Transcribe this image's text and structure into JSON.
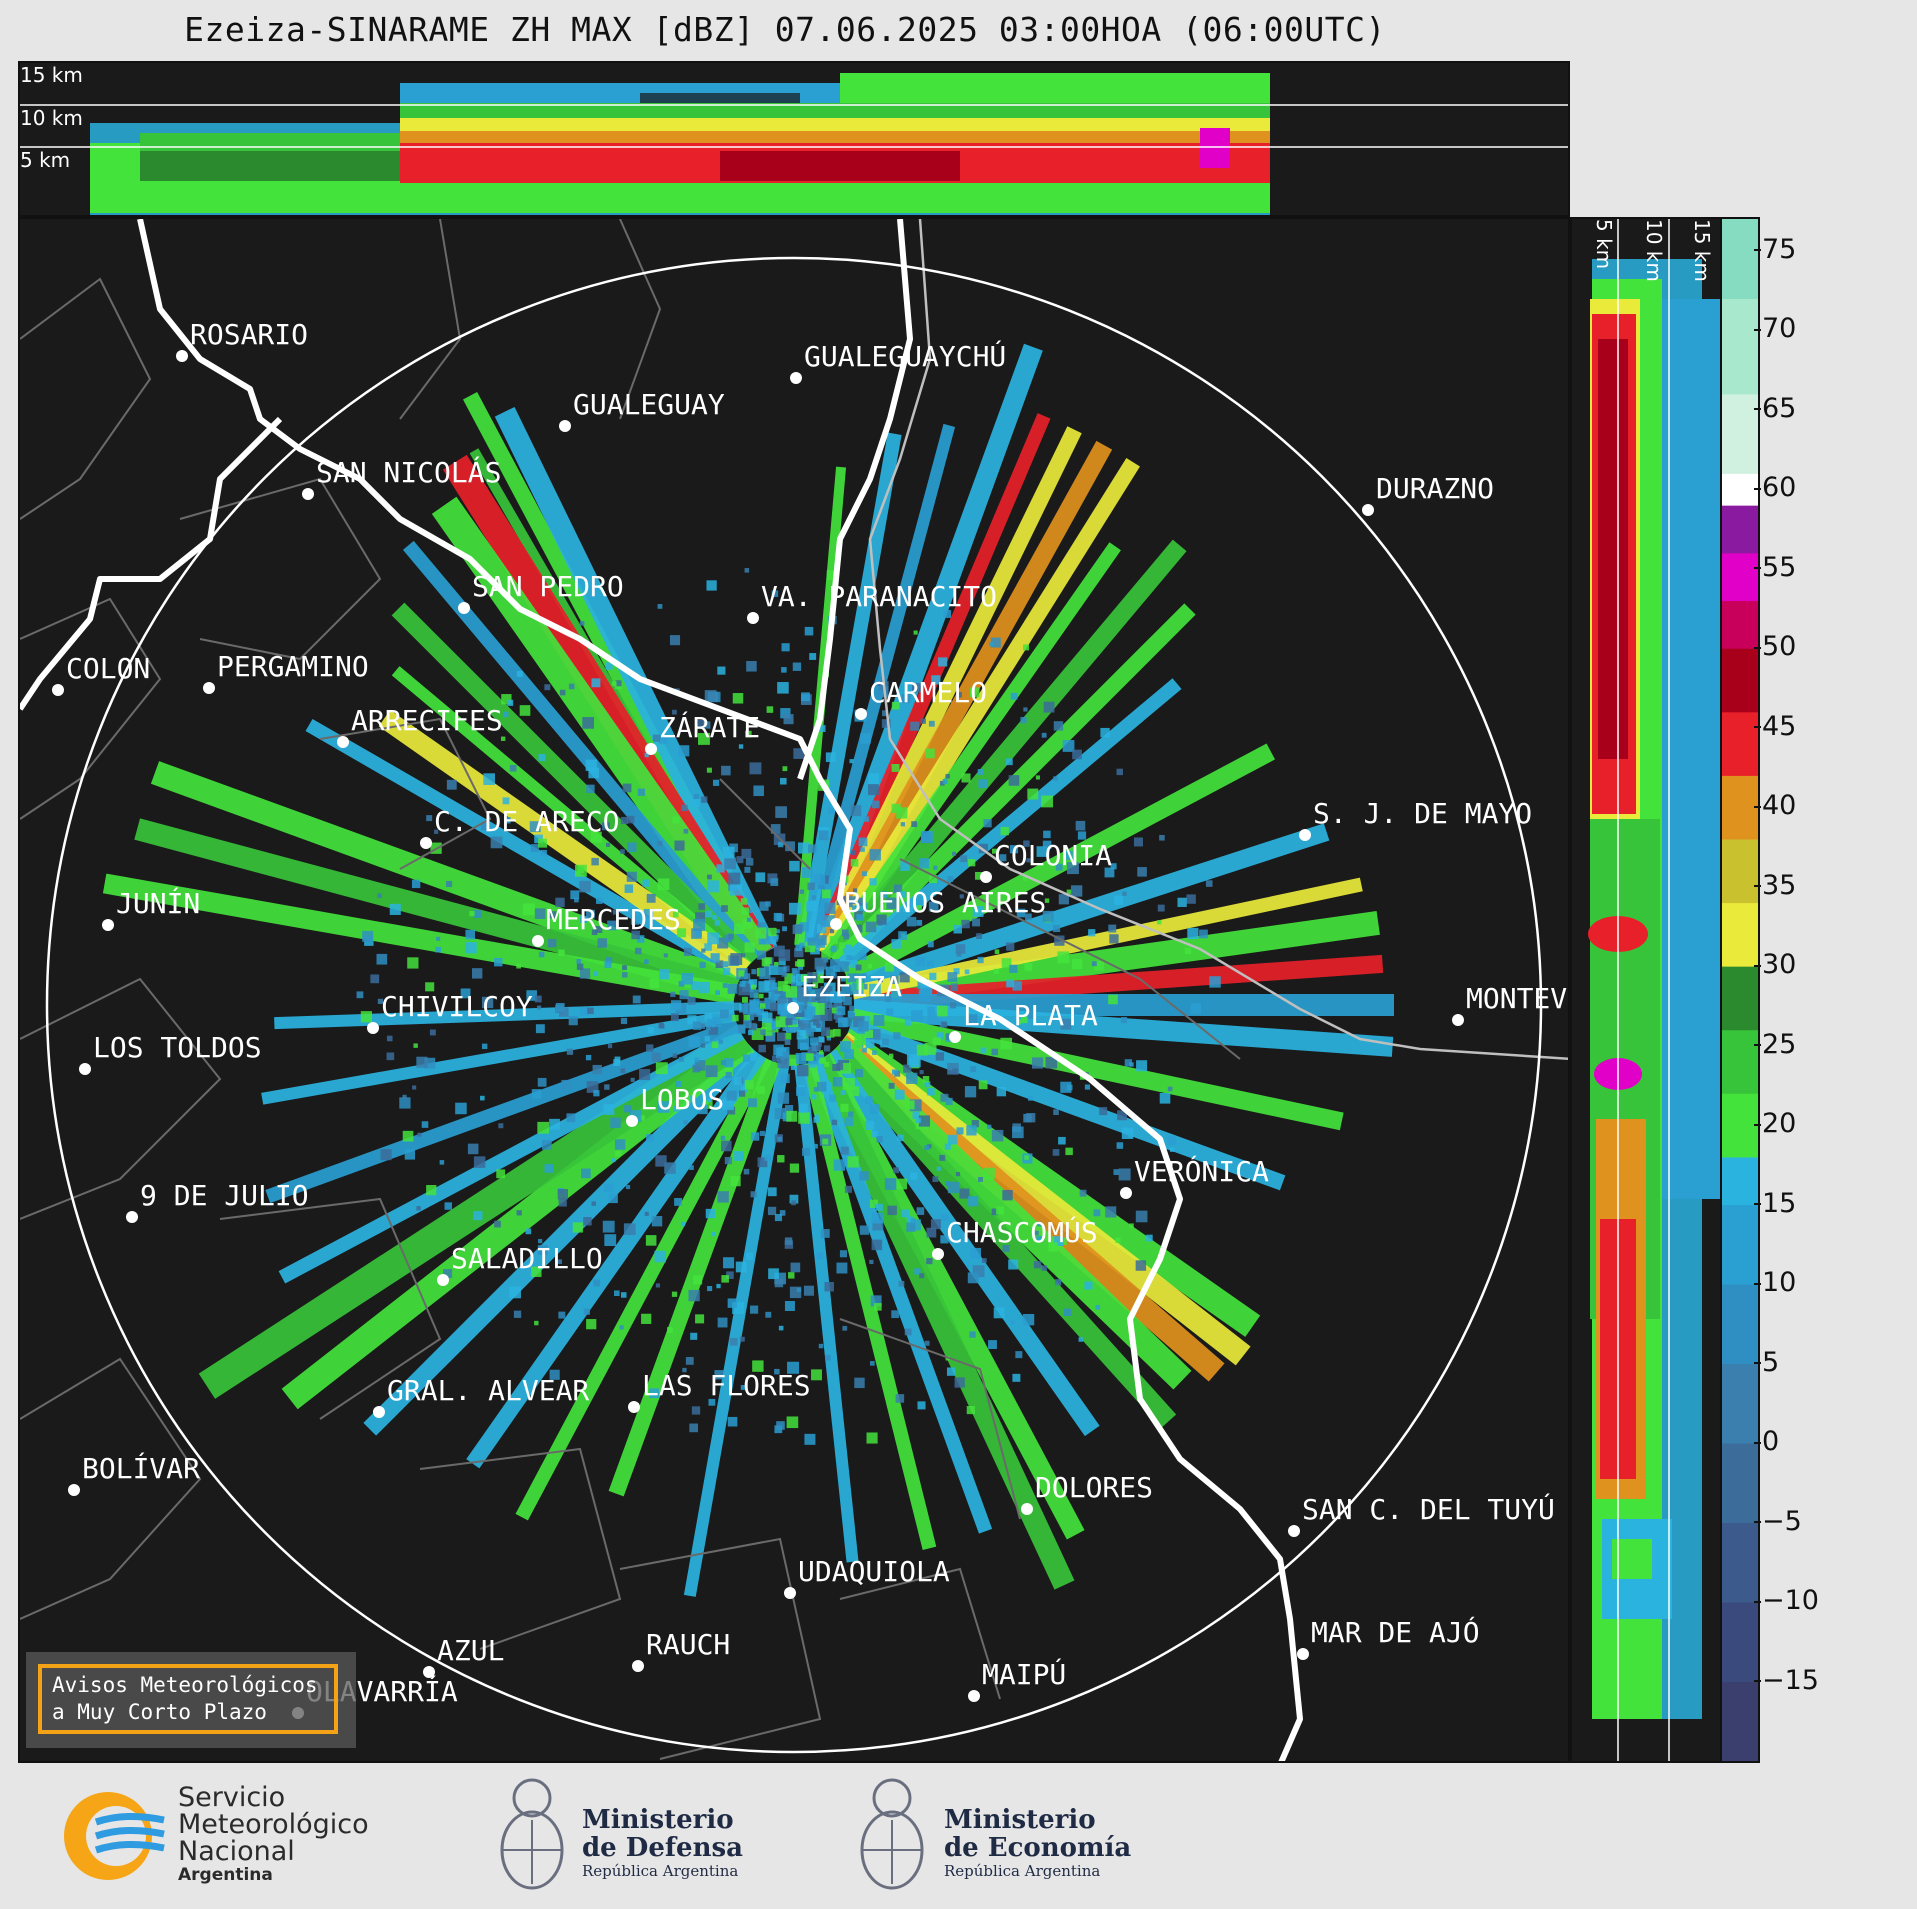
{
  "title": "Ezeiza-SINARAME ZH MAX [dBZ] 07.06.2025 03:00HOA (06:00UTC)",
  "top_panel": {
    "altitude_labels": [
      "15 km",
      "10 km",
      "5 km"
    ]
  },
  "side_panel": {
    "altitude_labels": [
      "5 km",
      "10 km",
      "15 km"
    ]
  },
  "colorbar": {
    "unit": "dBZ",
    "ticks": [
      "75",
      "70",
      "65",
      "60",
      "55",
      "50",
      "45",
      "40",
      "35",
      "30",
      "25",
      "20",
      "15",
      "10",
      "5",
      "0",
      "−5",
      "−10",
      "−15"
    ],
    "range": [
      -20,
      77
    ],
    "stops": [
      {
        "from": -20,
        "to": -15,
        "color": "#3a3f6e"
      },
      {
        "from": -15,
        "to": -10,
        "color": "#3b4a7c"
      },
      {
        "from": -10,
        "to": -5,
        "color": "#3c5a8c"
      },
      {
        "from": -5,
        "to": 0,
        "color": "#3b6c9a"
      },
      {
        "from": 0,
        "to": 5,
        "color": "#3a7fae"
      },
      {
        "from": 5,
        "to": 10,
        "color": "#2f8fc2"
      },
      {
        "from": 10,
        "to": 15,
        "color": "#2a9fd2"
      },
      {
        "from": 15,
        "to": 18,
        "color": "#2bb3e0"
      },
      {
        "from": 18,
        "to": 22,
        "color": "#44e33c"
      },
      {
        "from": 22,
        "to": 26,
        "color": "#38c43a"
      },
      {
        "from": 26,
        "to": 30,
        "color": "#2b8a2e"
      },
      {
        "from": 30,
        "to": 34,
        "color": "#eaea3a"
      },
      {
        "from": 34,
        "to": 38,
        "color": "#c9c22e"
      },
      {
        "from": 38,
        "to": 42,
        "color": "#e0921e"
      },
      {
        "from": 42,
        "to": 46,
        "color": "#e8202a"
      },
      {
        "from": 46,
        "to": 50,
        "color": "#a8001a"
      },
      {
        "from": 50,
        "to": 53,
        "color": "#c8005c"
      },
      {
        "from": 53,
        "to": 56,
        "color": "#e000c8"
      },
      {
        "from": 56,
        "to": 59,
        "color": "#8a1aa0"
      },
      {
        "from": 59,
        "to": 61,
        "color": "#ffffff"
      },
      {
        "from": 61,
        "to": 66,
        "color": "#d0f0e0"
      },
      {
        "from": 66,
        "to": 72,
        "color": "#a8e8cc"
      },
      {
        "from": 72,
        "to": 77,
        "color": "#86dcc0"
      }
    ]
  },
  "cities": [
    {
      "name": "ROSARIO"
    },
    {
      "name": "GUALEGUAYCHÚ"
    },
    {
      "name": "GUALEGUAY"
    },
    {
      "name": "SAN NICOLÁS"
    },
    {
      "name": "DURAZNO"
    },
    {
      "name": "SAN PEDRO"
    },
    {
      "name": "VA. PARANACITO"
    },
    {
      "name": "COLON"
    },
    {
      "name": "PERGAMINO"
    },
    {
      "name": "CARMELO"
    },
    {
      "name": "ARRECIFES"
    },
    {
      "name": "ZÁRATE"
    },
    {
      "name": "S. J. DE MAYO"
    },
    {
      "name": "C. DE ARECO"
    },
    {
      "name": "COLONIA"
    },
    {
      "name": "JUNÍN"
    },
    {
      "name": "BUENOS AIRES"
    },
    {
      "name": "MERCEDES"
    },
    {
      "name": "EZEIZA"
    },
    {
      "name": "MONTEV"
    },
    {
      "name": "CHIVILCOY"
    },
    {
      "name": "LA PLATA"
    },
    {
      "name": "LOS TOLDOS"
    },
    {
      "name": "LOBOS"
    },
    {
      "name": "VERÓNICA"
    },
    {
      "name": "9 DE JULIO"
    },
    {
      "name": "CHASCOMÚS"
    },
    {
      "name": "SALADILLO"
    },
    {
      "name": "GRAL. ALVEAR"
    },
    {
      "name": "LAS FLORES"
    },
    {
      "name": "BOLÍVAR"
    },
    {
      "name": "DOLORES"
    },
    {
      "name": "SAN C. DEL TUYÚ"
    },
    {
      "name": "UDAQUIOLA"
    },
    {
      "name": "MAR DE AJÓ"
    },
    {
      "name": "AZUL"
    },
    {
      "name": "RAUCH"
    },
    {
      "name": "MAIPÚ"
    },
    {
      "name": "OLAVARRÍA"
    }
  ],
  "avisos_box": {
    "line1": "Avisos Meteorológicos",
    "line2": "a Muy Corto Plazo"
  },
  "footer": {
    "smn": {
      "line1": "Servicio",
      "line2": "Meteorológico",
      "line3": "Nacional",
      "line4": "Argentina"
    },
    "defensa": {
      "line1": "Ministerio",
      "line2": "de Defensa",
      "line3": "República Argentina"
    },
    "economia": {
      "line1": "Ministerio",
      "line2": "de Economía",
      "line3": "República Argentina"
    }
  }
}
